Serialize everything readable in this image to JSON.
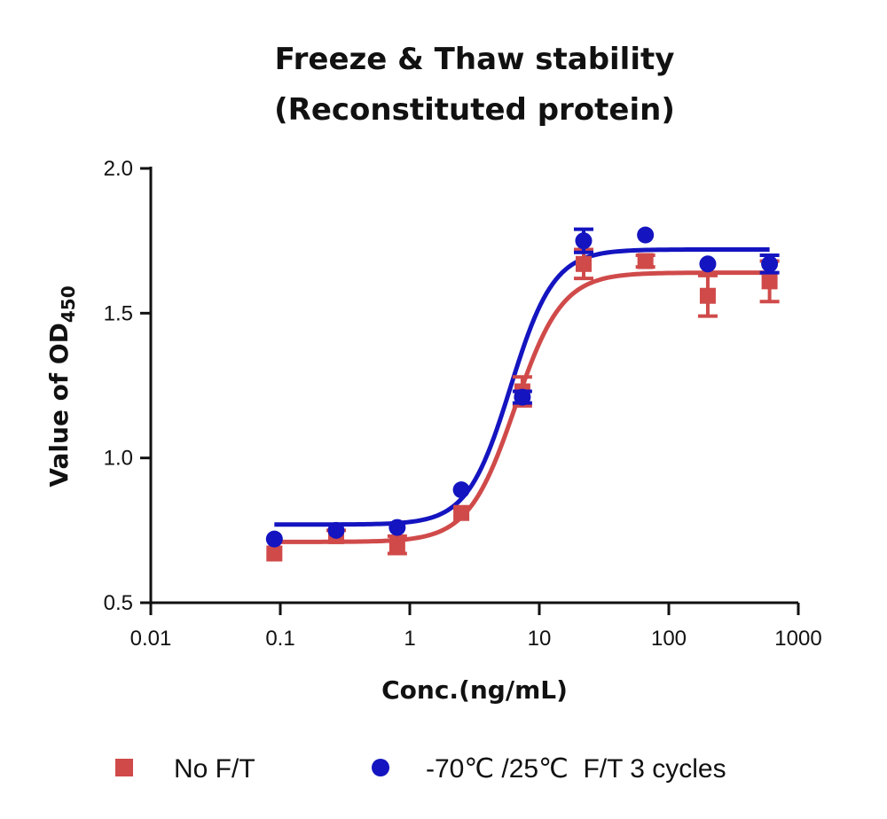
{
  "chart_data": {
    "type": "scatter",
    "title": [
      "Freeze & Thaw stability",
      "(Reconstituted protein)"
    ],
    "xlabel": "Conc.(ng/mL)",
    "ylabel": {
      "main": "Value of OD",
      "subscript": "450"
    },
    "x_scale": "log",
    "xlim": [
      0.01,
      1000
    ],
    "ylim": [
      0.5,
      2.0
    ],
    "x_ticks": [
      "0.01",
      "0.1",
      "1",
      "10",
      "100",
      "1000"
    ],
    "y_ticks": [
      "0.5",
      "1.0",
      "1.5",
      "2.0"
    ],
    "legend_position": "bottom",
    "series": [
      {
        "name": "No F/T",
        "color": "#d04a4a",
        "marker": "square",
        "points": [
          {
            "x": 0.09,
            "y": 0.67,
            "err": 0.0
          },
          {
            "x": 0.27,
            "y": 0.73,
            "err": 0.02
          },
          {
            "x": 0.8,
            "y": 0.7,
            "err": 0.03
          },
          {
            "x": 2.5,
            "y": 0.81,
            "err": 0.0
          },
          {
            "x": 7.4,
            "y": 1.23,
            "err": 0.05
          },
          {
            "x": 22,
            "y": 1.67,
            "err": 0.05
          },
          {
            "x": 66,
            "y": 1.68,
            "err": 0.02
          },
          {
            "x": 200,
            "y": 1.56,
            "err": 0.07
          },
          {
            "x": 600,
            "y": 1.61,
            "err": 0.07
          }
        ],
        "fit": {
          "bottom": 0.71,
          "top": 1.64,
          "ec50": 6.5,
          "hill": 2.4
        }
      },
      {
        "name": "-70℃ /25℃  F/T 3 cycles",
        "color": "#1414c0",
        "marker": "circle",
        "points": [
          {
            "x": 0.09,
            "y": 0.72,
            "err": 0.0
          },
          {
            "x": 0.27,
            "y": 0.75,
            "err": 0.0
          },
          {
            "x": 0.8,
            "y": 0.76,
            "err": 0.0
          },
          {
            "x": 2.5,
            "y": 0.89,
            "err": 0.0
          },
          {
            "x": 7.4,
            "y": 1.21,
            "err": 0.02
          },
          {
            "x": 22,
            "y": 1.75,
            "err": 0.04
          },
          {
            "x": 66,
            "y": 1.77,
            "err": 0.0
          },
          {
            "x": 200,
            "y": 1.67,
            "err": 0.0
          },
          {
            "x": 600,
            "y": 1.67,
            "err": 0.03
          }
        ],
        "fit": {
          "bottom": 0.77,
          "top": 1.72,
          "ec50": 6.0,
          "hill": 2.6
        }
      }
    ]
  }
}
